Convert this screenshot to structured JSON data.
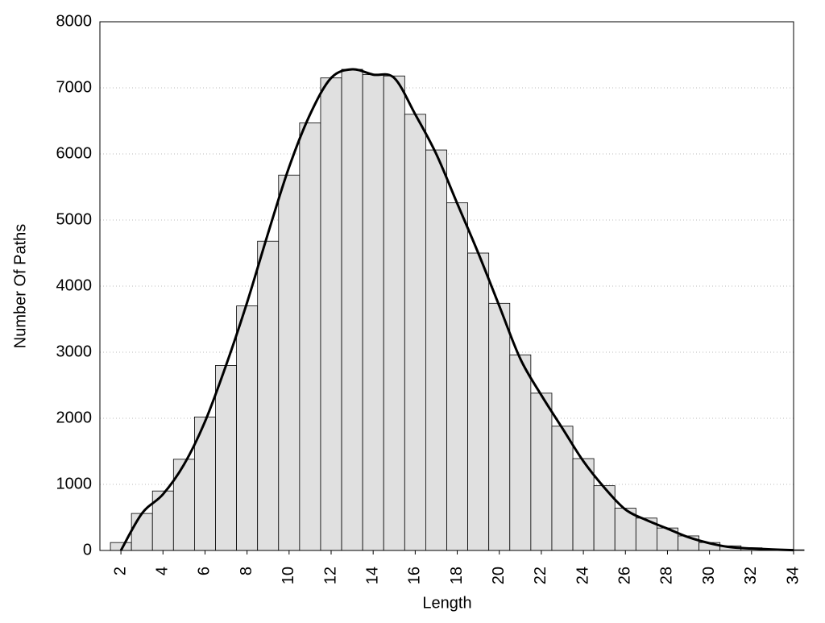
{
  "chart_data": {
    "type": "bar",
    "xlabel": "Length",
    "ylabel": "Number Of Paths",
    "x": [
      2,
      3,
      4,
      5,
      6,
      7,
      8,
      9,
      10,
      11,
      12,
      13,
      14,
      15,
      16,
      17,
      18,
      19,
      20,
      21,
      22,
      23,
      24,
      25,
      26,
      27,
      28,
      29,
      30,
      31,
      32,
      33,
      34
    ],
    "values": [
      120,
      560,
      900,
      1380,
      2020,
      2800,
      3700,
      4680,
      5680,
      6470,
      7150,
      7280,
      7200,
      7180,
      6600,
      6060,
      5260,
      4500,
      3740,
      2960,
      2380,
      1880,
      1390,
      980,
      640,
      490,
      340,
      220,
      120,
      70,
      40,
      20,
      10
    ],
    "line_values": [
      0,
      560,
      850,
      1300,
      1950,
      2800,
      3750,
      4800,
      5800,
      6600,
      7150,
      7280,
      7200,
      7150,
      6600,
      6000,
      5250,
      4500,
      3700,
      2900,
      2350,
      1850,
      1350,
      950,
      620,
      460,
      330,
      200,
      110,
      50,
      30,
      15,
      5
    ],
    "color": "#e0e0e0",
    "line_color": "#000000",
    "xlim": [
      1,
      34
    ],
    "xticks": [
      2,
      4,
      6,
      8,
      10,
      12,
      14,
      16,
      18,
      20,
      22,
      24,
      26,
      28,
      30,
      32,
      34
    ],
    "ylim": [
      0,
      8000
    ],
    "yticks": [
      0,
      1000,
      2000,
      3000,
      4000,
      5000,
      6000,
      7000,
      8000
    ],
    "grid": true
  }
}
